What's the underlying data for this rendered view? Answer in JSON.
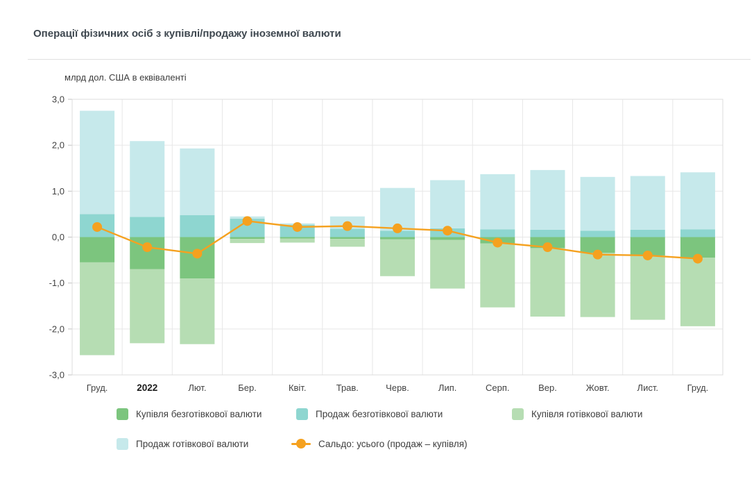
{
  "header": {
    "title": "Операції фізичних осіб з купівлі/продажу іноземної валюти"
  },
  "chart_data": {
    "type": "bar",
    "subtype": "stacked-bar-with-line",
    "title": "Операції фізичних осіб з купівлі/продажу іноземної валюти",
    "unit_label": "млрд дол. США в еквіваленті",
    "categories": [
      "Груд.",
      "2022",
      "Лют.",
      "Бер.",
      "Квіт.",
      "Трав.",
      "Черв.",
      "Лип.",
      "Серп.",
      "Вер.",
      "Жовт.",
      "Лист.",
      "Груд."
    ],
    "bold_category": "2022",
    "y_ticks": [
      "3,0",
      "2,0",
      "1,0",
      "0,0",
      "-1,0",
      "-2,0",
      "-3,0"
    ],
    "ylim": [
      -3,
      3
    ],
    "grid": true,
    "legend_position": "bottom",
    "series": [
      {
        "name": "Купівля безготівкової валюти",
        "type": "bar",
        "direction": "negative",
        "stack": 0,
        "color": "#7cc57e",
        "values": [
          0.55,
          0.7,
          0.9,
          0.04,
          0.03,
          0.04,
          0.05,
          0.06,
          0.14,
          0.24,
          0.34,
          0.4,
          0.45
        ]
      },
      {
        "name": "Продаж безготівкової валюти",
        "type": "bar",
        "direction": "positive",
        "stack": 0,
        "color": "#8ed6d0",
        "values": [
          0.5,
          0.44,
          0.48,
          0.4,
          0.27,
          0.18,
          0.14,
          0.19,
          0.17,
          0.16,
          0.14,
          0.16,
          0.17
        ]
      },
      {
        "name": "Купівля готівкової валюти",
        "type": "bar",
        "direction": "negative",
        "stack": 1,
        "color": "#b6ddb3",
        "values": [
          2.02,
          1.61,
          1.43,
          0.09,
          0.09,
          0.17,
          0.8,
          1.06,
          1.39,
          1.49,
          1.4,
          1.4,
          1.49
        ]
      },
      {
        "name": "Продаж готівкової валюти",
        "type": "bar",
        "direction": "positive",
        "stack": 1,
        "color": "#c6e9eb",
        "values": [
          2.25,
          1.65,
          1.45,
          0.05,
          0.03,
          0.27,
          0.93,
          1.05,
          1.2,
          1.3,
          1.17,
          1.17,
          1.24
        ]
      },
      {
        "name": "Сальдо: усього (продаж – купівля)",
        "type": "line",
        "color": "#f5a11f",
        "values": [
          0.22,
          -0.22,
          -0.36,
          0.35,
          0.22,
          0.24,
          0.19,
          0.14,
          -0.12,
          -0.22,
          -0.38,
          -0.4,
          -0.47
        ]
      }
    ],
    "colors": {
      "grid": "#e7e7e7",
      "plot_border": "#dcdcdc",
      "tick": "#c2c2c2",
      "axis_text": "#424242"
    }
  }
}
